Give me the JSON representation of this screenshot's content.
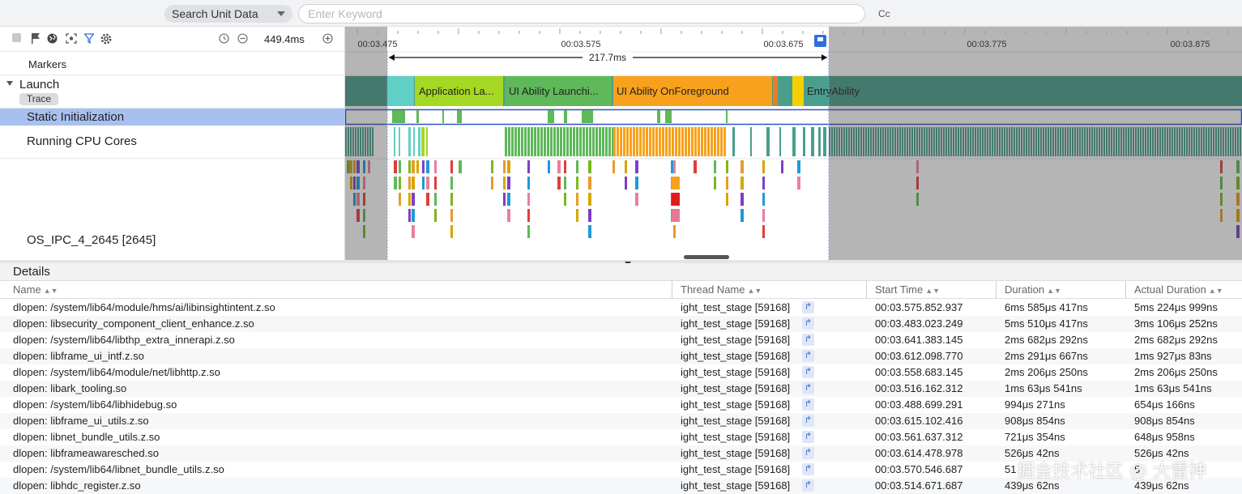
{
  "search": {
    "unit_select_label": "Search Unit Data",
    "keyword_placeholder": "Enter Keyword",
    "case_toggle": "Cc"
  },
  "toolbar": {
    "zoom_value": "449.4ms",
    "icons": [
      "stop-icon",
      "flag-icon",
      "globe-icon",
      "focus-icon",
      "filter-icon",
      "settings-icon",
      "history-icon",
      "zoom-out-icon",
      "zoom-in-icon"
    ]
  },
  "timeline": {
    "ticks": [
      "00:03.475",
      "00:03.575",
      "00:03.675",
      "00:03.775",
      "00:03.875"
    ],
    "selection_duration": "217.7ms"
  },
  "tracks": {
    "markers": "Markers",
    "launch": "Launch",
    "trace_tag": "Trace",
    "static_init": "Static Initialization",
    "cpu_cores": "Running CPU Cores",
    "ipc": "OS_IPC_4_2645 [2645]"
  },
  "launch_slices": [
    {
      "label": "Application La...",
      "color": "#a4d822"
    },
    {
      "label": "UI Ability Launchi...",
      "color": "#5fb85a"
    },
    {
      "label": "UI Ability OnForeground",
      "color": "#f8a11c"
    },
    {
      "label": "EntryAbility",
      "color": "#4a9e8c"
    }
  ],
  "details": {
    "title": "Details",
    "columns": [
      "Name",
      "Thread Name",
      "Start Time",
      "Duration",
      "Actual Duration"
    ],
    "rows": [
      {
        "name": "dlopen: /system/lib64/module/hms/ai/libinsightintent.z.so",
        "thread": "ight_test_stage [59168]",
        "start": "00:03.575.852.937",
        "duration": "6ms 585μs 417ns",
        "actual": "5ms 224μs 999ns"
      },
      {
        "name": "dlopen: libsecurity_component_client_enhance.z.so",
        "thread": "ight_test_stage [59168]",
        "start": "00:03.483.023.249",
        "duration": "5ms 510μs 417ns",
        "actual": "3ms 106μs 252ns"
      },
      {
        "name": "dlopen: /system/lib64/libthp_extra_innerapi.z.so",
        "thread": "ight_test_stage [59168]",
        "start": "00:03.641.383.145",
        "duration": "2ms 682μs 292ns",
        "actual": "2ms 682μs 292ns"
      },
      {
        "name": "dlopen: libframe_ui_intf.z.so",
        "thread": "ight_test_stage [59168]",
        "start": "00:03.612.098.770",
        "duration": "2ms 291μs 667ns",
        "actual": "1ms 927μs 83ns"
      },
      {
        "name": "dlopen: /system/lib64/module/net/libhttp.z.so",
        "thread": "ight_test_stage [59168]",
        "start": "00:03.558.683.145",
        "duration": "2ms 206μs 250ns",
        "actual": "2ms 206μs 250ns"
      },
      {
        "name": "dlopen: libark_tooling.so",
        "thread": "ight_test_stage [59168]",
        "start": "00:03.516.162.312",
        "duration": "1ms 63μs 541ns",
        "actual": "1ms 63μs 541ns"
      },
      {
        "name": "dlopen: /system/lib64/libhidebug.so",
        "thread": "ight_test_stage [59168]",
        "start": "00:03.488.699.291",
        "duration": "994μs 271ns",
        "actual": "654μs 166ns"
      },
      {
        "name": "dlopen: libframe_ui_utils.z.so",
        "thread": "ight_test_stage [59168]",
        "start": "00:03.615.102.416",
        "duration": "908μs 854ns",
        "actual": "908μs 854ns"
      },
      {
        "name": "dlopen: libnet_bundle_utils.z.so",
        "thread": "ight_test_stage [59168]",
        "start": "00:03.561.637.312",
        "duration": "721μs 354ns",
        "actual": "648μs 958ns"
      },
      {
        "name": "dlopen: libframeawaresched.so",
        "thread": "ight_test_stage [59168]",
        "start": "00:03.614.478.978",
        "duration": "526μs 42ns",
        "actual": "526μs 42ns"
      },
      {
        "name": "dlopen: /system/lib64/libnet_bundle_utils.z.so",
        "thread": "ight_test_stage [59168]",
        "start": "00:03.570.546.687",
        "duration": "51",
        "actual": "5"
      },
      {
        "name": "dlopen: libhdc_register.z.so",
        "thread": "ight_test_stage [59168]",
        "start": "00:03.514.671.687",
        "duration": "439μs 62ns",
        "actual": "439μs 62ns"
      }
    ]
  },
  "watermark": "掘金技术社区 @ 大雷神"
}
